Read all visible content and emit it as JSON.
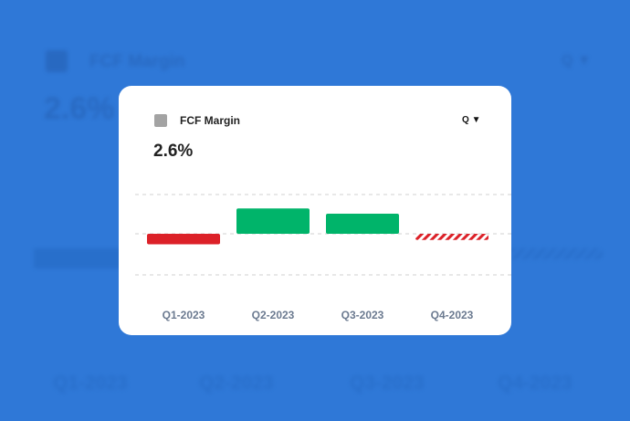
{
  "metric": {
    "title": "FCF Margin",
    "value": "2.6%",
    "period": "Q",
    "period_icon": "caret-down-icon",
    "legend_color": "#a3a3a3"
  },
  "chart_data": {
    "type": "bar",
    "categories": [
      "Q1-2023",
      "Q2-2023",
      "Q3-2023",
      "Q4-2023"
    ],
    "values": [
      -2.4,
      5.8,
      4.6,
      -1.4
    ],
    "estimated": [
      false,
      false,
      false,
      true
    ],
    "ylim": [
      -9,
      9
    ],
    "grid": true,
    "colors": {
      "positive": "#00b46a",
      "negative": "#dc2128"
    }
  },
  "colors": {
    "background": "#2f78d7"
  }
}
